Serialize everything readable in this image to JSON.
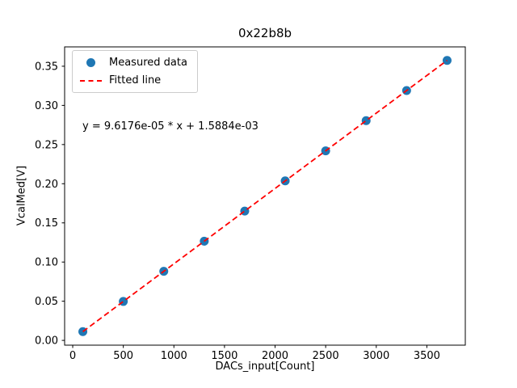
{
  "chart_data": {
    "type": "scatter",
    "title": "0x22b8b",
    "xlabel": "DACs_input[Count]",
    "ylabel": "VcalMed[V]",
    "annotation": "y = 9.6176e-05 * x + 1.5884e-03",
    "x": [
      100,
      500,
      900,
      1300,
      1700,
      2100,
      2500,
      2900,
      3300,
      3700
    ],
    "series": [
      {
        "name": "Measured data",
        "type": "scatter",
        "color": "#1f77b4",
        "y": [
          0.0112,
          0.0497,
          0.0882,
          0.1266,
          0.1651,
          0.2036,
          0.242,
          0.2805,
          0.319,
          0.3574
        ]
      },
      {
        "name": "Fitted line",
        "type": "line",
        "style": "dashed",
        "color": "#ff0000",
        "slope": 9.6176e-05,
        "intercept": 0.0015884
      }
    ],
    "xticks": [
      0,
      500,
      1000,
      1500,
      2000,
      2500,
      3000,
      3500
    ],
    "yticks": [
      0.0,
      0.05,
      0.1,
      0.15,
      0.2,
      0.25,
      0.3,
      0.35
    ],
    "xlim": [
      -80,
      3880
    ],
    "ylim": [
      -0.0061,
      0.3747
    ],
    "grid": false,
    "legend_position": "upper left"
  }
}
